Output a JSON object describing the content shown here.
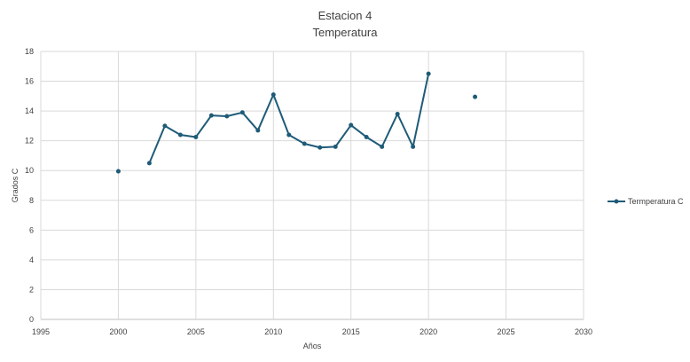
{
  "chart_data": {
    "type": "scatter",
    "title": "Estacion 4",
    "subtitle": "Temperatura",
    "xlabel": "Años",
    "ylabel": "Grados C",
    "xlim": [
      1995,
      2030
    ],
    "ylim": [
      0,
      18
    ],
    "xticks": [
      1995,
      2000,
      2005,
      2010,
      2015,
      2020,
      2025,
      2030
    ],
    "yticks": [
      0,
      2,
      4,
      6,
      8,
      10,
      12,
      14,
      16,
      18
    ],
    "grid": true,
    "legend_position": "right",
    "series": [
      {
        "name": "Termperatura C",
        "color": "#1f5b78",
        "style": "line-with-markers",
        "points": [
          {
            "x": 2000,
            "y": 9.95
          },
          {
            "x": 2002,
            "y": 10.5
          },
          {
            "x": 2003,
            "y": 13.0
          },
          {
            "x": 2004,
            "y": 12.4
          },
          {
            "x": 2005,
            "y": 12.25
          },
          {
            "x": 2006,
            "y": 13.7
          },
          {
            "x": 2007,
            "y": 13.65
          },
          {
            "x": 2008,
            "y": 13.9
          },
          {
            "x": 2009,
            "y": 12.7
          },
          {
            "x": 2010,
            "y": 15.1
          },
          {
            "x": 2011,
            "y": 12.4
          },
          {
            "x": 2012,
            "y": 11.8
          },
          {
            "x": 2013,
            "y": 11.55
          },
          {
            "x": 2014,
            "y": 11.6
          },
          {
            "x": 2015,
            "y": 13.05
          },
          {
            "x": 2016,
            "y": 12.25
          },
          {
            "x": 2017,
            "y": 11.6
          },
          {
            "x": 2018,
            "y": 13.8
          },
          {
            "x": 2019,
            "y": 11.6
          },
          {
            "x": 2020,
            "y": 16.5
          },
          {
            "x": 2023,
            "y": 14.95
          }
        ]
      }
    ]
  }
}
